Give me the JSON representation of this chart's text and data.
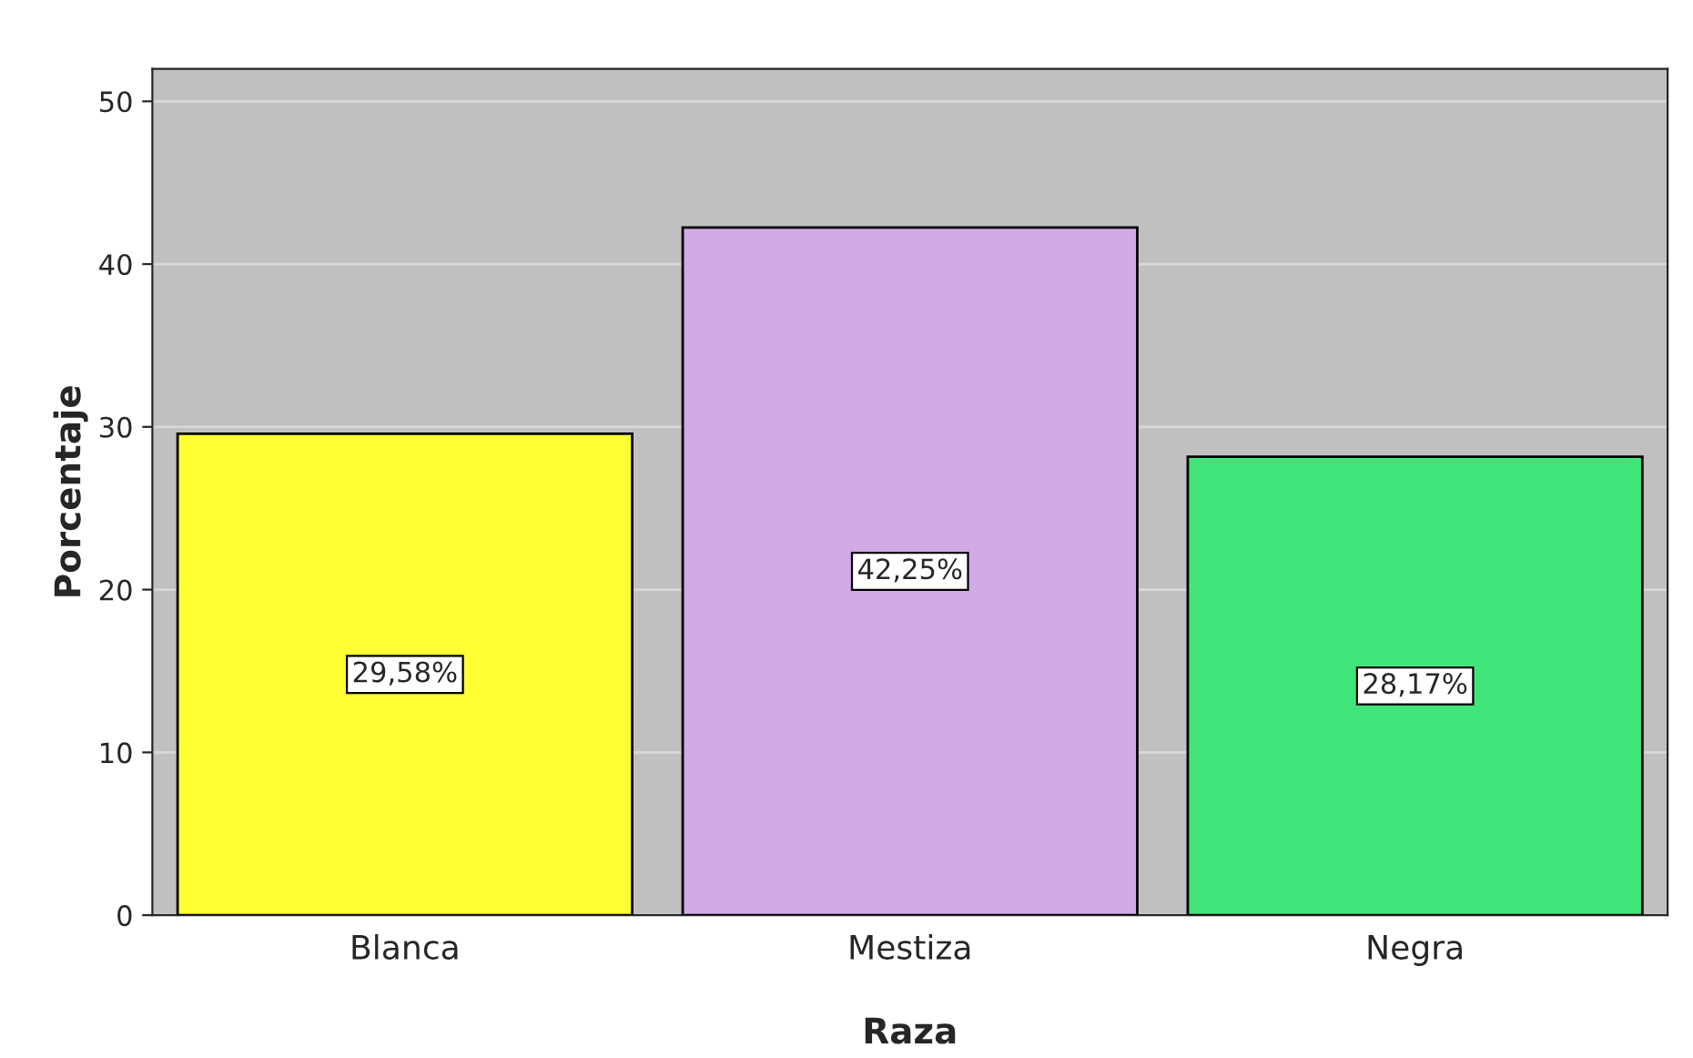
{
  "chart_data": {
    "type": "bar",
    "xlabel": "Raza",
    "ylabel": "Porcentaje",
    "categories": [
      "Blanca",
      "Mestiza",
      "Negra"
    ],
    "values": [
      29.58,
      42.25,
      28.17
    ],
    "colors": [
      "#ffff33",
      "#d0a9e6",
      "#40e57a"
    ],
    "value_labels": [
      "29,58%",
      "42,25%",
      "28,17%"
    ],
    "ylim": [
      0,
      52
    ],
    "yticks": [
      0,
      10,
      20,
      30,
      40,
      50
    ],
    "grid": "y"
  }
}
